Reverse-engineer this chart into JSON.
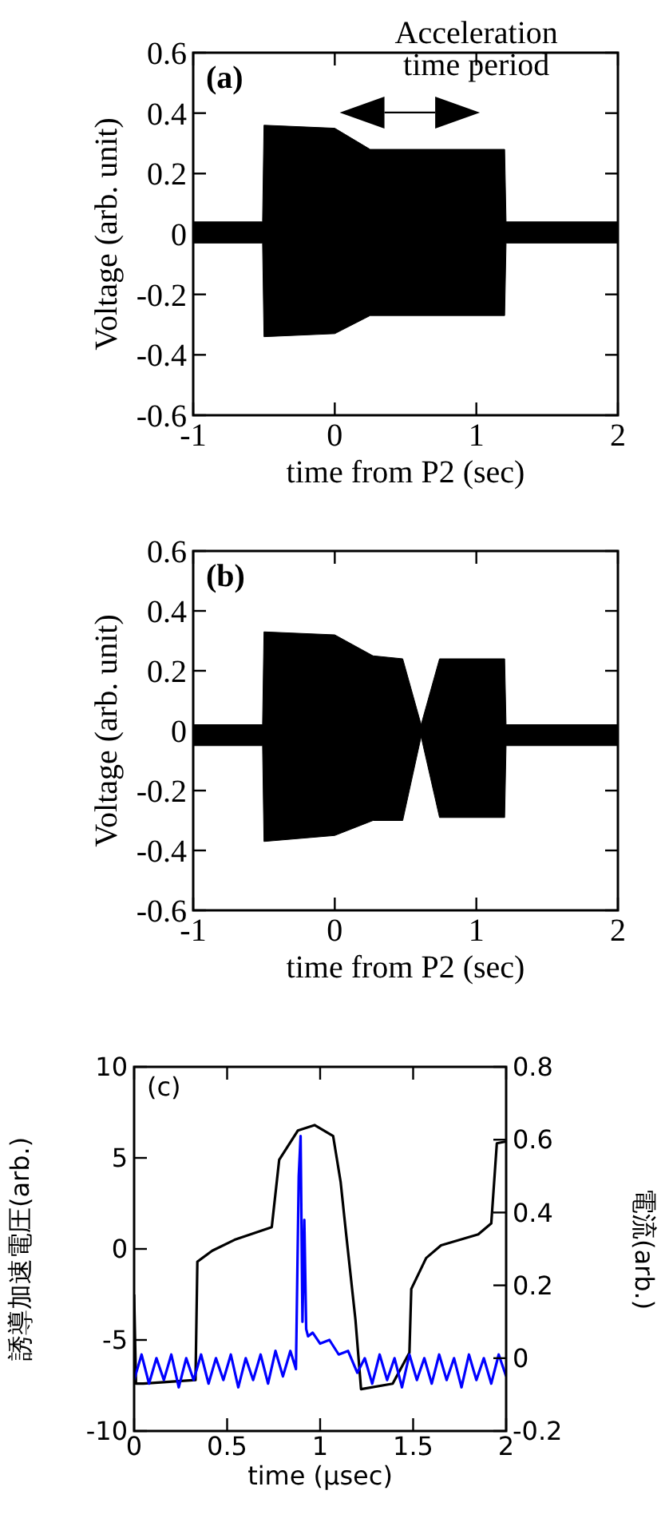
{
  "chart_data": [
    {
      "type": "area",
      "title": "(a)",
      "xlabel": "time from P2 (sec)",
      "ylabel": "Voltage (arb. unit)",
      "xlim": [
        -1,
        2
      ],
      "xticks": [
        -1,
        0,
        1,
        2
      ],
      "ylim": [
        -0.6,
        0.6
      ],
      "yticks": [
        -0.6,
        -0.4,
        -0.2,
        0,
        0.2,
        0.4,
        0.6
      ],
      "annotations": [
        "Acceleration\ntime period"
      ],
      "series": [
        {
          "color": "#000000",
          "x": [
            -1,
            -0.51,
            -0.5,
            0,
            0.25,
            1.2,
            1.21,
            2
          ],
          "values": [
            0.04,
            0.04,
            0.36,
            0.35,
            0.28,
            0.28,
            0.04,
            0.04
          ]
        },
        {
          "color": "#000000",
          "x": [
            -1,
            -0.51,
            -0.5,
            0,
            0.25,
            1.2,
            1.21,
            2
          ],
          "values": [
            -0.03,
            -0.03,
            -0.34,
            -0.33,
            -0.27,
            -0.27,
            -0.03,
            -0.03
          ]
        }
      ]
    },
    {
      "type": "area",
      "title": "(b)",
      "xlabel": "time from P2 (sec)",
      "ylabel": "Voltage (arb. unit)",
      "xlim": [
        -1,
        2
      ],
      "xticks": [
        -1,
        0,
        1,
        2
      ],
      "ylim": [
        -0.6,
        0.6
      ],
      "yticks": [
        -0.6,
        -0.4,
        -0.2,
        0,
        0.2,
        0.4,
        0.6
      ],
      "series": [
        {
          "color": "#000000",
          "x": [
            -1,
            -0.51,
            -0.5,
            0,
            0.27,
            0.48,
            0.61,
            0.74,
            1.2,
            1.21,
            2
          ],
          "values": [
            0.02,
            0.02,
            0.33,
            0.32,
            0.25,
            0.24,
            0.02,
            0.24,
            0.24,
            0.02,
            0.02
          ]
        },
        {
          "color": "#000000",
          "x": [
            -1,
            -0.51,
            -0.5,
            0,
            0.27,
            0.48,
            0.61,
            0.74,
            1.2,
            1.21,
            2
          ],
          "values": [
            -0.05,
            -0.05,
            -0.37,
            -0.35,
            -0.3,
            -0.3,
            -0.02,
            -0.29,
            -0.29,
            -0.05,
            -0.05
          ]
        }
      ]
    },
    {
      "type": "line",
      "title": "(c)",
      "xlabel": "time (μsec)",
      "ylabel": "誘導加速電圧(arb.)",
      "y2label": "電流(arb.)",
      "xlim": [
        0,
        2
      ],
      "xticks": [
        0,
        0.5,
        1,
        1.5,
        2
      ],
      "ylim": [
        -10,
        10
      ],
      "yticks": [
        -10,
        -5,
        0,
        5,
        10
      ],
      "y2lim": [
        -0.2,
        0.8
      ],
      "y2ticks": [
        -0.2,
        0,
        0.2,
        0.4,
        0.6,
        0.8
      ],
      "series": [
        {
          "color": "#000000",
          "x": [
            0,
            0.01,
            0.05,
            0.33,
            0.34,
            0.42,
            0.54,
            0.74,
            0.78,
            0.88,
            0.97,
            1.07,
            1.11,
            1.14,
            1.19,
            1.22,
            1.39,
            1.48,
            1.49,
            1.57,
            1.65,
            1.85,
            1.92,
            1.95,
            2
          ],
          "values": [
            -2.5,
            -7.4,
            -7.4,
            -7.2,
            -0.7,
            -0.1,
            0.5,
            1.2,
            4.9,
            6.5,
            6.8,
            6.2,
            3.7,
            0.8,
            -3.9,
            -7.7,
            -7.4,
            -5.7,
            -2.2,
            -0.5,
            0.2,
            0.8,
            1.4,
            5.8,
            5.9
          ]
        },
        {
          "color": "#0000ff",
          "axis": "y2",
          "x": [
            0,
            0.04,
            0.08,
            0.12,
            0.16,
            0.2,
            0.24,
            0.28,
            0.32,
            0.36,
            0.4,
            0.44,
            0.48,
            0.52,
            0.56,
            0.6,
            0.64,
            0.68,
            0.72,
            0.76,
            0.8,
            0.84,
            0.87,
            0.885,
            0.895,
            0.905,
            0.915,
            0.925,
            0.935,
            0.96,
            1.0,
            1.05,
            1.1,
            1.15,
            1.2,
            1.24,
            1.28,
            1.32,
            1.36,
            1.4,
            1.44,
            1.48,
            1.52,
            1.56,
            1.6,
            1.64,
            1.68,
            1.72,
            1.76,
            1.8,
            1.84,
            1.88,
            1.92,
            1.96,
            2
          ],
          "values": [
            -0.06,
            0.01,
            -0.07,
            0.0,
            -0.06,
            0.01,
            -0.08,
            0.0,
            -0.06,
            0.01,
            -0.07,
            0.0,
            -0.06,
            0.01,
            -0.08,
            0.0,
            -0.06,
            0.01,
            -0.07,
            0.02,
            -0.05,
            0.02,
            -0.03,
            0.5,
            0.61,
            0.1,
            0.38,
            0.08,
            0.06,
            0.07,
            0.04,
            0.05,
            0.01,
            0.02,
            -0.04,
            0.0,
            -0.07,
            0.01,
            -0.06,
            0.0,
            -0.08,
            0.01,
            -0.06,
            0.0,
            -0.07,
            0.01,
            -0.06,
            0.0,
            -0.08,
            0.01,
            -0.06,
            0.0,
            -0.07,
            0.01,
            -0.05
          ]
        }
      ]
    }
  ]
}
